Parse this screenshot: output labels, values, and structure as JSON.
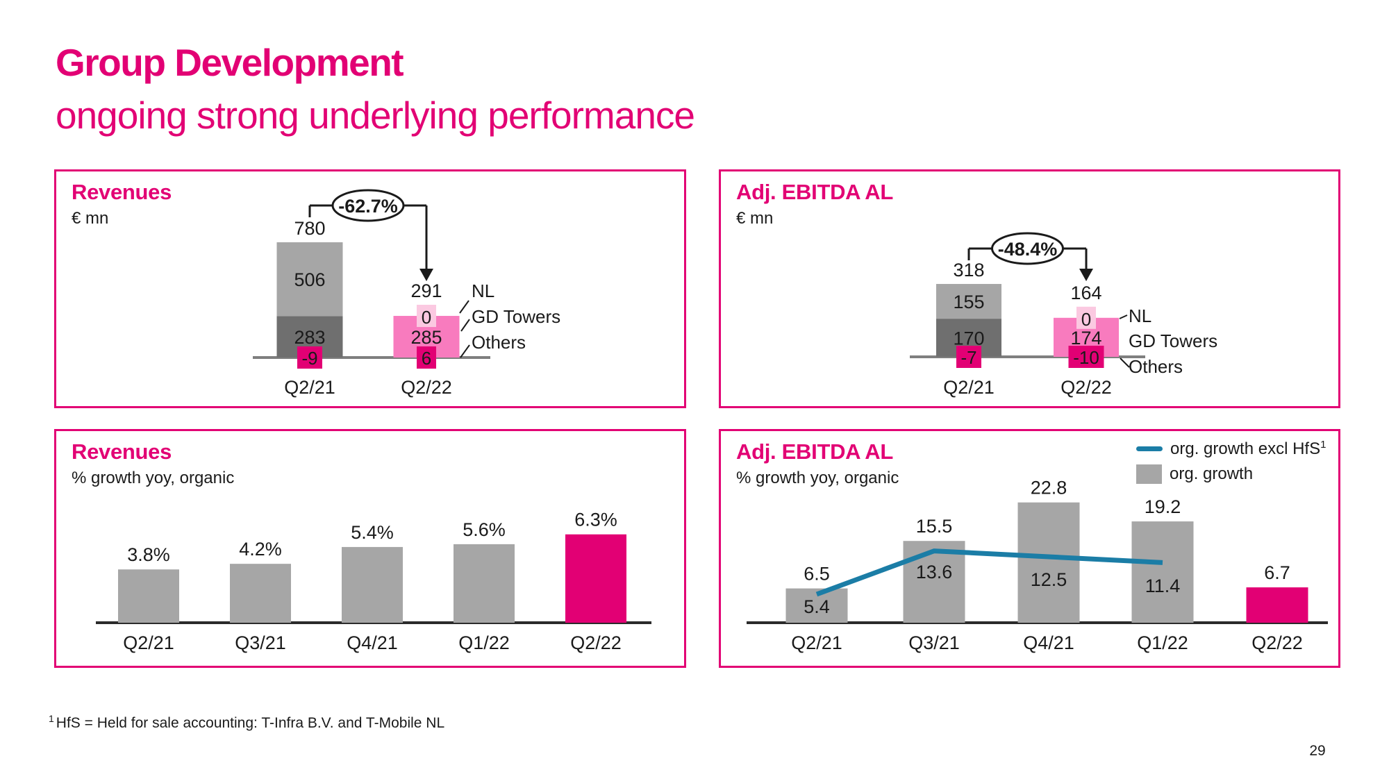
{
  "slide": {
    "title": "Group Development",
    "subtitle": "ongoing strong underlying performance",
    "footnote_sup": "1",
    "footnote": "HfS = Held for sale accounting: T-Infra B.V. and T-Mobile NL",
    "page_number": "29"
  },
  "colors": {
    "magenta": "#e20074",
    "pink": "#f87bbe",
    "pink_light": "#fbc9e1",
    "gray_light": "#a6a6a6",
    "gray_dark": "#6f6f6f",
    "teal": "#1b7da6",
    "axis_gray": "#7f7f7f",
    "axis_dark": "#2b2b2b",
    "text": "#1a1a1a",
    "white": "#ffffff"
  },
  "chart_data": [
    {
      "type": "bar",
      "subtype": "stacked-waterfall",
      "title": "Revenues",
      "unit": "€ mn",
      "change_label": "-62.7%",
      "categories": [
        "Q2/21",
        "Q2/22"
      ],
      "totals": [
        780,
        291
      ],
      "series": [
        {
          "name": "NL",
          "values": [
            506,
            0
          ]
        },
        {
          "name": "GD Towers",
          "values": [
            283,
            285
          ]
        },
        {
          "name": "Others",
          "values": [
            -9,
            6
          ]
        }
      ]
    },
    {
      "type": "bar",
      "subtype": "stacked-waterfall",
      "title": "Adj. EBITDA AL",
      "unit": "€ mn",
      "change_label": "-48.4%",
      "categories": [
        "Q2/21",
        "Q2/22"
      ],
      "totals": [
        318,
        164
      ],
      "series": [
        {
          "name": "NL",
          "values": [
            155,
            0
          ]
        },
        {
          "name": "GD Towers",
          "values": [
            170,
            174
          ]
        },
        {
          "name": "Others",
          "values": [
            -7,
            -10
          ]
        }
      ]
    },
    {
      "type": "bar",
      "title": "Revenues",
      "subtitle": "% growth yoy, organic",
      "categories": [
        "Q2/21",
        "Q3/21",
        "Q4/21",
        "Q1/22",
        "Q2/22"
      ],
      "values": [
        3.8,
        4.2,
        5.4,
        5.6,
        6.3
      ],
      "value_labels": [
        "3.8%",
        "4.2%",
        "5.4%",
        "5.6%",
        "6.3%"
      ],
      "highlight_index": 4,
      "ylim": [
        0,
        7
      ]
    },
    {
      "type": "bar",
      "subtype": "bar+line",
      "title": "Adj. EBITDA AL",
      "subtitle": "% growth yoy, organic",
      "categories": [
        "Q2/21",
        "Q3/21",
        "Q4/21",
        "Q1/22",
        "Q2/22"
      ],
      "series": [
        {
          "name": "org. growth",
          "kind": "bar",
          "values": [
            6.5,
            15.5,
            22.8,
            19.2,
            6.7
          ]
        },
        {
          "name": "org. growth excl HfS",
          "name_sup": "1",
          "kind": "line",
          "values": [
            5.4,
            13.6,
            12.5,
            11.4,
            null
          ]
        }
      ],
      "highlight_index": 4,
      "ylim": [
        0,
        26
      ],
      "legend": [
        {
          "swatch": "line",
          "label": "org. growth excl HfS",
          "sup": "1"
        },
        {
          "swatch": "square",
          "label": "org. growth"
        }
      ]
    }
  ]
}
